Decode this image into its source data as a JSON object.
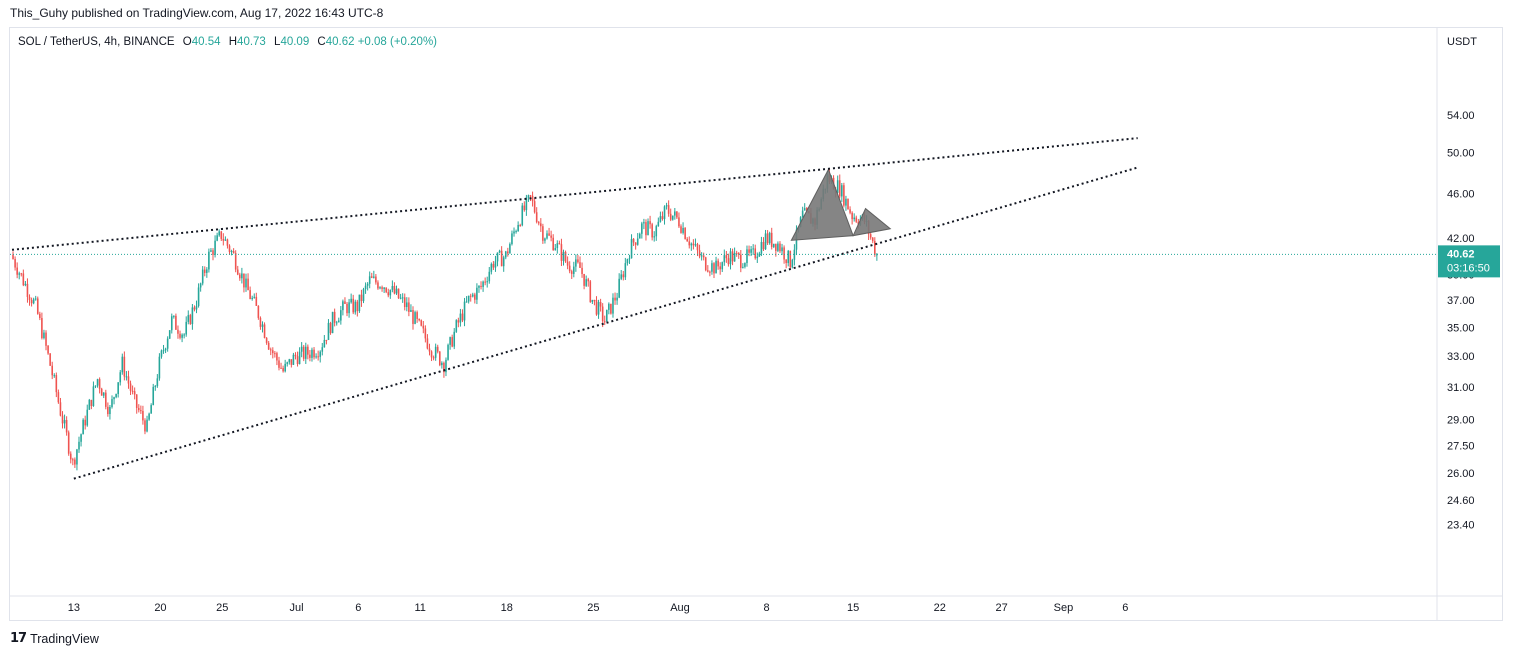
{
  "publisher": "This_Guhy published on TradingView.com, Aug 17, 2022 16:43 UTC-8",
  "legend": {
    "symbol": "SOL / TetherUS, 4h, BINANCE",
    "open_label": "O",
    "open": "40.54",
    "high_label": "H",
    "high": "40.73",
    "low_label": "L",
    "low": "40.09",
    "close_label": "C",
    "close": "40.62",
    "change": "+0.08 (+0.20%)"
  },
  "footer": {
    "brand": "TradingView",
    "logo_icon": "tradingview-logo-icon"
  },
  "colors": {
    "up": "#26a69a",
    "down": "#ef5350",
    "last_price_bg": "#26a69a",
    "trendline": "#131722",
    "pattern_fill": "#787878"
  },
  "chart_data": {
    "type": "candlestick",
    "title": "",
    "y_axis": {
      "currency_label": "USDT",
      "scale": "log",
      "ticks": [
        54.0,
        50.0,
        46.0,
        42.0,
        39.0,
        37.0,
        35.0,
        33.0,
        31.0,
        29.0,
        27.5,
        26.0,
        24.6,
        23.4
      ],
      "tick_labels": [
        "54.00",
        "50.00",
        "46.00",
        "42.00",
        "39.00",
        "37.00",
        "35.00",
        "33.00",
        "31.00",
        "29.00",
        "27.50",
        "26.00",
        "24.60",
        "23.40"
      ]
    },
    "x_axis": {
      "start": "2022-06-08",
      "ticks": [
        {
          "date": "2022-06-13",
          "label": "13"
        },
        {
          "date": "2022-06-20",
          "label": "20"
        },
        {
          "date": "2022-06-25",
          "label": "25"
        },
        {
          "date": "2022-07-01",
          "label": "Jul"
        },
        {
          "date": "2022-07-06",
          "label": "6"
        },
        {
          "date": "2022-07-11",
          "label": "11"
        },
        {
          "date": "2022-07-18",
          "label": "18"
        },
        {
          "date": "2022-07-25",
          "label": "25"
        },
        {
          "date": "2022-08-01",
          "label": "Aug"
        },
        {
          "date": "2022-08-08",
          "label": "8"
        },
        {
          "date": "2022-08-15",
          "label": "15"
        },
        {
          "date": "2022-08-22",
          "label": "22"
        },
        {
          "date": "2022-08-27",
          "label": "27"
        },
        {
          "date": "2022-09-01",
          "label": "Sep"
        },
        {
          "date": "2022-09-06",
          "label": "6"
        }
      ]
    },
    "last_price": {
      "value": 40.62,
      "label": "40.62",
      "countdown": "03:16:50"
    },
    "price_path": [
      [
        "2022-06-08",
        40.6
      ],
      [
        "2022-06-09",
        38.5
      ],
      [
        "2022-06-10",
        36.5
      ],
      [
        "2022-06-11",
        33.0
      ],
      [
        "2022-06-12",
        29.5
      ],
      [
        "2022-06-13",
        26.5
      ],
      [
        "2022-06-14",
        29.0
      ],
      [
        "2022-06-15",
        31.5
      ],
      [
        "2022-06-16",
        29.5
      ],
      [
        "2022-06-17",
        32.5
      ],
      [
        "2022-06-18",
        30.0
      ],
      [
        "2022-06-19",
        28.5
      ],
      [
        "2022-06-20",
        32.5
      ],
      [
        "2022-06-21",
        35.5
      ],
      [
        "2022-06-22",
        34.5
      ],
      [
        "2022-06-23",
        37.0
      ],
      [
        "2022-06-24",
        40.5
      ],
      [
        "2022-06-25",
        42.3
      ],
      [
        "2022-06-26",
        40.5
      ],
      [
        "2022-06-27",
        38.0
      ],
      [
        "2022-06-28",
        36.0
      ],
      [
        "2022-06-29",
        33.5
      ],
      [
        "2022-06-30",
        32.0
      ],
      [
        "2022-07-01",
        33.0
      ],
      [
        "2022-07-02",
        33.2
      ],
      [
        "2022-07-03",
        33.6
      ],
      [
        "2022-07-04",
        35.5
      ],
      [
        "2022-07-05",
        36.5
      ],
      [
        "2022-07-06",
        36.5
      ],
      [
        "2022-07-07",
        38.5
      ],
      [
        "2022-07-08",
        38.3
      ],
      [
        "2022-07-09",
        37.5
      ],
      [
        "2022-07-10",
        36.5
      ],
      [
        "2022-07-11",
        35.0
      ],
      [
        "2022-07-12",
        33.5
      ],
      [
        "2022-07-13",
        32.5
      ],
      [
        "2022-07-14",
        35.0
      ],
      [
        "2022-07-15",
        37.0
      ],
      [
        "2022-07-16",
        38.0
      ],
      [
        "2022-07-17",
        40.0
      ],
      [
        "2022-07-18",
        40.5
      ],
      [
        "2022-07-19",
        43.5
      ],
      [
        "2022-07-20",
        45.5
      ],
      [
        "2022-07-21",
        42.5
      ],
      [
        "2022-07-22",
        41.5
      ],
      [
        "2022-07-23",
        39.8
      ],
      [
        "2022-07-24",
        39.5
      ],
      [
        "2022-07-25",
        37.0
      ],
      [
        "2022-07-26",
        35.5
      ],
      [
        "2022-07-27",
        37.5
      ],
      [
        "2022-07-28",
        41.0
      ],
      [
        "2022-07-29",
        43.0
      ],
      [
        "2022-07-30",
        42.5
      ],
      [
        "2022-07-31",
        44.5
      ],
      [
        "2022-08-01",
        43.5
      ],
      [
        "2022-08-02",
        41.5
      ],
      [
        "2022-08-03",
        40.0
      ],
      [
        "2022-08-04",
        39.5
      ],
      [
        "2022-08-05",
        40.5
      ],
      [
        "2022-08-06",
        40.2
      ],
      [
        "2022-08-07",
        40.5
      ],
      [
        "2022-08-08",
        42.0
      ],
      [
        "2022-08-09",
        41.5
      ],
      [
        "2022-08-10",
        40.0
      ],
      [
        "2022-08-11",
        44.0
      ],
      [
        "2022-08-12",
        43.5
      ],
      [
        "2022-08-13",
        47.5
      ],
      [
        "2022-08-14",
        46.5
      ],
      [
        "2022-08-15",
        44.0
      ],
      [
        "2022-08-16",
        43.5
      ],
      [
        "2022-08-17",
        40.6
      ]
    ],
    "trendlines": [
      {
        "name": "upper-resistance",
        "from": {
          "date": "2022-06-08",
          "price": 41.0
        },
        "to": {
          "date": "2022-09-07",
          "price": 51.5
        }
      },
      {
        "name": "lower-support",
        "from": {
          "date": "2022-06-13",
          "price": 25.7
        },
        "to": {
          "date": "2022-09-07",
          "price": 48.5
        }
      }
    ],
    "pattern_triangles": [
      {
        "points": [
          {
            "date": "2022-08-10",
            "price": 41.8
          },
          {
            "date": "2022-08-13",
            "price": 48.3
          },
          {
            "date": "2022-08-15",
            "price": 42.2
          }
        ]
      },
      {
        "points": [
          {
            "date": "2022-08-15",
            "price": 42.2
          },
          {
            "date": "2022-08-16",
            "price": 44.6
          },
          {
            "date": "2022-08-18",
            "price": 42.8
          }
        ]
      }
    ]
  }
}
